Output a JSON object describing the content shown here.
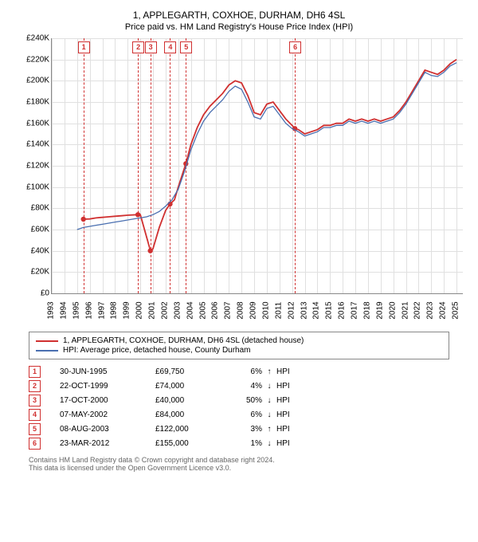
{
  "title_line1": "1, APPLEGARTH, COXHOE, DURHAM, DH6 4SL",
  "title_line2": "Price paid vs. HM Land Registry's House Price Index (HPI)",
  "chart": {
    "type": "line",
    "xlim": [
      1993,
      2025.5
    ],
    "ylim": [
      0,
      240000
    ],
    "ytick_step": 20000,
    "y_ticks": [
      "£0",
      "£20K",
      "£40K",
      "£60K",
      "£80K",
      "£100K",
      "£120K",
      "£140K",
      "£160K",
      "£180K",
      "£200K",
      "£220K",
      "£240K"
    ],
    "x_ticks": [
      1993,
      1994,
      1995,
      1996,
      1997,
      1998,
      1999,
      2000,
      2001,
      2002,
      2003,
      2004,
      2005,
      2006,
      2007,
      2008,
      2009,
      2010,
      2011,
      2012,
      2013,
      2014,
      2015,
      2016,
      2017,
      2018,
      2019,
      2020,
      2021,
      2022,
      2023,
      2024,
      2025
    ],
    "grid_color": "#e0e0e0",
    "background_color": "#ffffff",
    "series": [
      {
        "name": "1, APPLEGARTH, COXHOE, DURHAM, DH6 4SL (detached house)",
        "color": "#d03030",
        "width": 1.8,
        "points": [
          [
            1995.5,
            69750
          ],
          [
            1996.0,
            70000
          ],
          [
            1996.5,
            71000
          ],
          [
            1997.0,
            71500
          ],
          [
            1997.5,
            72000
          ],
          [
            1998.0,
            72500
          ],
          [
            1998.5,
            73000
          ],
          [
            1999.0,
            73500
          ],
          [
            1999.8,
            74000
          ],
          [
            2000.0,
            74000
          ],
          [
            2000.8,
            40000
          ],
          [
            2001.0,
            42000
          ],
          [
            2001.5,
            62000
          ],
          [
            2002.0,
            78000
          ],
          [
            2002.35,
            84000
          ],
          [
            2002.7,
            88000
          ],
          [
            2003.0,
            100000
          ],
          [
            2003.6,
            122000
          ],
          [
            2004.0,
            140000
          ],
          [
            2004.5,
            156000
          ],
          [
            2005.0,
            168000
          ],
          [
            2005.5,
            176000
          ],
          [
            2006.0,
            182000
          ],
          [
            2006.5,
            188000
          ],
          [
            2007.0,
            196000
          ],
          [
            2007.5,
            200000
          ],
          [
            2008.0,
            198000
          ],
          [
            2008.5,
            186000
          ],
          [
            2009.0,
            170000
          ],
          [
            2009.5,
            168000
          ],
          [
            2010.0,
            178000
          ],
          [
            2010.5,
            180000
          ],
          [
            2011.0,
            172000
          ],
          [
            2011.5,
            164000
          ],
          [
            2012.0,
            158000
          ],
          [
            2012.22,
            155000
          ],
          [
            2012.5,
            154000
          ],
          [
            2013.0,
            150000
          ],
          [
            2013.5,
            152000
          ],
          [
            2014.0,
            154000
          ],
          [
            2014.5,
            158000
          ],
          [
            2015.0,
            158000
          ],
          [
            2015.5,
            160000
          ],
          [
            2016.0,
            160000
          ],
          [
            2016.5,
            164000
          ],
          [
            2017.0,
            162000
          ],
          [
            2017.5,
            164000
          ],
          [
            2018.0,
            162000
          ],
          [
            2018.5,
            164000
          ],
          [
            2019.0,
            162000
          ],
          [
            2019.5,
            164000
          ],
          [
            2020.0,
            166000
          ],
          [
            2020.5,
            172000
          ],
          [
            2021.0,
            180000
          ],
          [
            2021.5,
            190000
          ],
          [
            2022.0,
            200000
          ],
          [
            2022.5,
            210000
          ],
          [
            2023.0,
            208000
          ],
          [
            2023.5,
            206000
          ],
          [
            2024.0,
            210000
          ],
          [
            2024.5,
            216000
          ],
          [
            2025.0,
            220000
          ]
        ]
      },
      {
        "name": "HPI: Average price, detached house, County Durham",
        "color": "#4a6fb0",
        "width": 1.3,
        "points": [
          [
            1995.0,
            60000
          ],
          [
            1995.5,
            62000
          ],
          [
            1996.0,
            63000
          ],
          [
            1996.5,
            64000
          ],
          [
            1997.0,
            65000
          ],
          [
            1997.5,
            66000
          ],
          [
            1998.0,
            67000
          ],
          [
            1998.5,
            68000
          ],
          [
            1999.0,
            69000
          ],
          [
            1999.5,
            70000
          ],
          [
            2000.0,
            71000
          ],
          [
            2000.5,
            72000
          ],
          [
            2001.0,
            74000
          ],
          [
            2001.5,
            77000
          ],
          [
            2002.0,
            82000
          ],
          [
            2002.5,
            88000
          ],
          [
            2003.0,
            98000
          ],
          [
            2003.5,
            115000
          ],
          [
            2004.0,
            135000
          ],
          [
            2004.5,
            150000
          ],
          [
            2005.0,
            162000
          ],
          [
            2005.5,
            170000
          ],
          [
            2006.0,
            176000
          ],
          [
            2006.5,
            182000
          ],
          [
            2007.0,
            190000
          ],
          [
            2007.5,
            195000
          ],
          [
            2008.0,
            192000
          ],
          [
            2008.5,
            180000
          ],
          [
            2009.0,
            166000
          ],
          [
            2009.5,
            164000
          ],
          [
            2010.0,
            174000
          ],
          [
            2010.5,
            176000
          ],
          [
            2011.0,
            168000
          ],
          [
            2011.5,
            160000
          ],
          [
            2012.0,
            155000
          ],
          [
            2012.5,
            152000
          ],
          [
            2013.0,
            148000
          ],
          [
            2013.5,
            150000
          ],
          [
            2014.0,
            152000
          ],
          [
            2014.5,
            156000
          ],
          [
            2015.0,
            156000
          ],
          [
            2015.5,
            158000
          ],
          [
            2016.0,
            158000
          ],
          [
            2016.5,
            162000
          ],
          [
            2017.0,
            160000
          ],
          [
            2017.5,
            162000
          ],
          [
            2018.0,
            160000
          ],
          [
            2018.5,
            162000
          ],
          [
            2019.0,
            160000
          ],
          [
            2019.5,
            162000
          ],
          [
            2020.0,
            164000
          ],
          [
            2020.5,
            170000
          ],
          [
            2021.0,
            178000
          ],
          [
            2021.5,
            188000
          ],
          [
            2022.0,
            198000
          ],
          [
            2022.5,
            208000
          ],
          [
            2023.0,
            205000
          ],
          [
            2023.5,
            204000
          ],
          [
            2024.0,
            208000
          ],
          [
            2024.5,
            214000
          ],
          [
            2025.0,
            217000
          ]
        ]
      }
    ],
    "transactions": [
      {
        "n": "1",
        "x": 1995.5,
        "price": 69750
      },
      {
        "n": "2",
        "x": 1999.81,
        "price": 74000
      },
      {
        "n": "3",
        "x": 2000.79,
        "price": 40000
      },
      {
        "n": "4",
        "x": 2002.35,
        "price": 84000
      },
      {
        "n": "5",
        "x": 2003.6,
        "price": 122000
      },
      {
        "n": "6",
        "x": 2012.22,
        "price": 155000
      }
    ],
    "dash_color": "#d03030"
  },
  "legend": {
    "items": [
      {
        "color": "#d03030",
        "label": "1, APPLEGARTH, COXHOE, DURHAM, DH6 4SL (detached house)"
      },
      {
        "color": "#4a6fb0",
        "label": "HPI: Average price, detached house, County Durham"
      }
    ]
  },
  "transactions_table": [
    {
      "n": "1",
      "date": "30-JUN-1995",
      "price": "£69,750",
      "pct": "6%",
      "arrow": "↑",
      "label": "HPI"
    },
    {
      "n": "2",
      "date": "22-OCT-1999",
      "price": "£74,000",
      "pct": "4%",
      "arrow": "↓",
      "label": "HPI"
    },
    {
      "n": "3",
      "date": "17-OCT-2000",
      "price": "£40,000",
      "pct": "50%",
      "arrow": "↓",
      "label": "HPI"
    },
    {
      "n": "4",
      "date": "07-MAY-2002",
      "price": "£84,000",
      "pct": "6%",
      "arrow": "↓",
      "label": "HPI"
    },
    {
      "n": "5",
      "date": "08-AUG-2003",
      "price": "£122,000",
      "pct": "3%",
      "arrow": "↑",
      "label": "HPI"
    },
    {
      "n": "6",
      "date": "23-MAR-2012",
      "price": "£155,000",
      "pct": "1%",
      "arrow": "↓",
      "label": "HPI"
    }
  ],
  "footer_line1": "Contains HM Land Registry data © Crown copyright and database right 2024.",
  "footer_line2": "This data is licensed under the Open Government Licence v3.0."
}
